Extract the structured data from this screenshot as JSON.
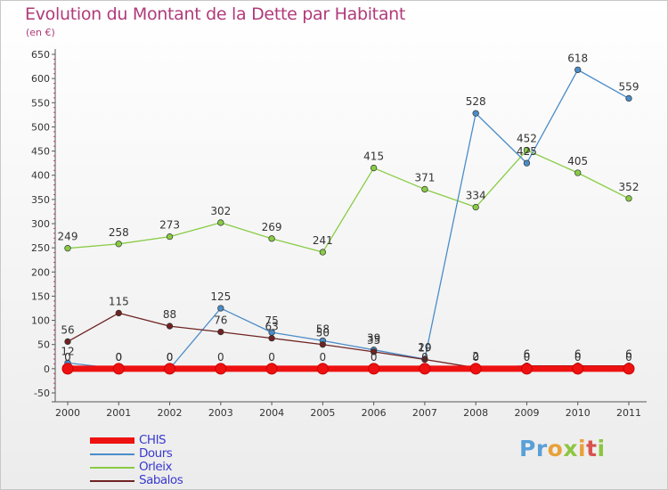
{
  "title": "Evolution du Montant de la Dette par Habitant",
  "subtitle": "(en €)",
  "logo": {
    "text": "Proxiti",
    "colors": [
      "#5aa0d8",
      "#e8a13a",
      "#8cc63f",
      "#d9534f"
    ]
  },
  "chart_data": {
    "type": "line",
    "title": "Evolution du Montant de la Dette par Habitant",
    "ylabel": "(en €)",
    "xlabel": "",
    "ylim": [
      -50,
      650
    ],
    "y_ticks": [
      -50,
      0,
      50,
      100,
      150,
      200,
      250,
      300,
      350,
      400,
      450,
      500,
      550,
      600,
      650
    ],
    "categories": [
      "2000",
      "2001",
      "2002",
      "2003",
      "2004",
      "2005",
      "2006",
      "2007",
      "2008",
      "2009",
      "2010",
      "2011"
    ],
    "grid": false,
    "legend_position": "bottom-left",
    "series": [
      {
        "name": "CHIS",
        "color": "#ee1111",
        "values": [
          0,
          0,
          0,
          0,
          0,
          0,
          0,
          0,
          0,
          0,
          0,
          0
        ],
        "labels": [
          "0",
          "0",
          "0",
          "0",
          "0",
          "0",
          "0",
          "0",
          "0",
          "0",
          "0",
          "0"
        ]
      },
      {
        "name": "Dours",
        "color": "#4a8cc8",
        "values": [
          12,
          0,
          0,
          125,
          75,
          58,
          39,
          20,
          528,
          425,
          618,
          559
        ],
        "labels": [
          "12",
          "0",
          "0",
          "125",
          "75",
          "58",
          "39",
          "20",
          "528",
          "425",
          "618",
          "559"
        ]
      },
      {
        "name": "Orleix",
        "color": "#88cc44",
        "values": [
          249,
          258,
          273,
          302,
          269,
          241,
          415,
          371,
          334,
          452,
          405,
          352
        ],
        "labels": [
          "249",
          "258",
          "273",
          "302",
          "269",
          "241",
          "415",
          "371",
          "334",
          "452",
          "405",
          "352"
        ]
      },
      {
        "name": "Sabalos",
        "color": "#702222",
        "values": [
          56,
          115,
          88,
          76,
          63,
          50,
          35,
          19,
          2,
          6,
          6,
          6
        ],
        "labels": [
          "56",
          "115",
          "88",
          "76",
          "63",
          "50",
          "35",
          "19",
          "2",
          "6",
          "6",
          "6"
        ]
      }
    ]
  }
}
